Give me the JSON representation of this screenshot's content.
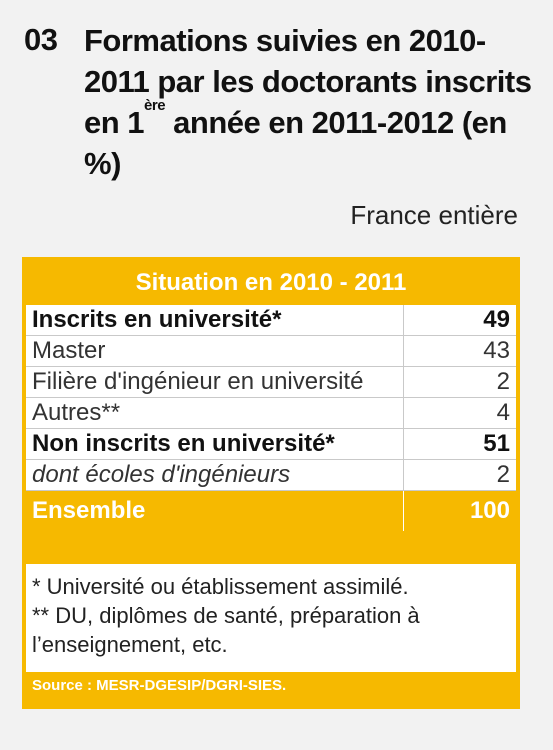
{
  "header": {
    "number": "03",
    "title_part1": "Formations suivies en 2010-2011 par les doctorants inscrits en 1",
    "title_sup": "ère",
    "title_part2": " année en 2011-2012 (en %)",
    "scope": "France entière"
  },
  "table": {
    "header": "Situation en 2010 - 2011",
    "rows": [
      {
        "label": "Inscrits en université*",
        "value": "49"
      },
      {
        "label": "Master",
        "value": "43"
      },
      {
        "label": "Filière d'ingénieur en université",
        "value": "2"
      },
      {
        "label": "Autres**",
        "value": "4"
      },
      {
        "label": "Non inscrits en université*",
        "value": "51"
      },
      {
        "label": "dont écoles d'ingénieurs",
        "value": "2"
      },
      {
        "label": "Ensemble",
        "value": "100"
      }
    ]
  },
  "notes": {
    "note1": "* Université ou établissement assimilé.",
    "note2": "** DU, diplômes de santé, préparation à l’enseignement, etc."
  },
  "source": "Source : MESR-DGESIP/DGRI-SIES."
}
